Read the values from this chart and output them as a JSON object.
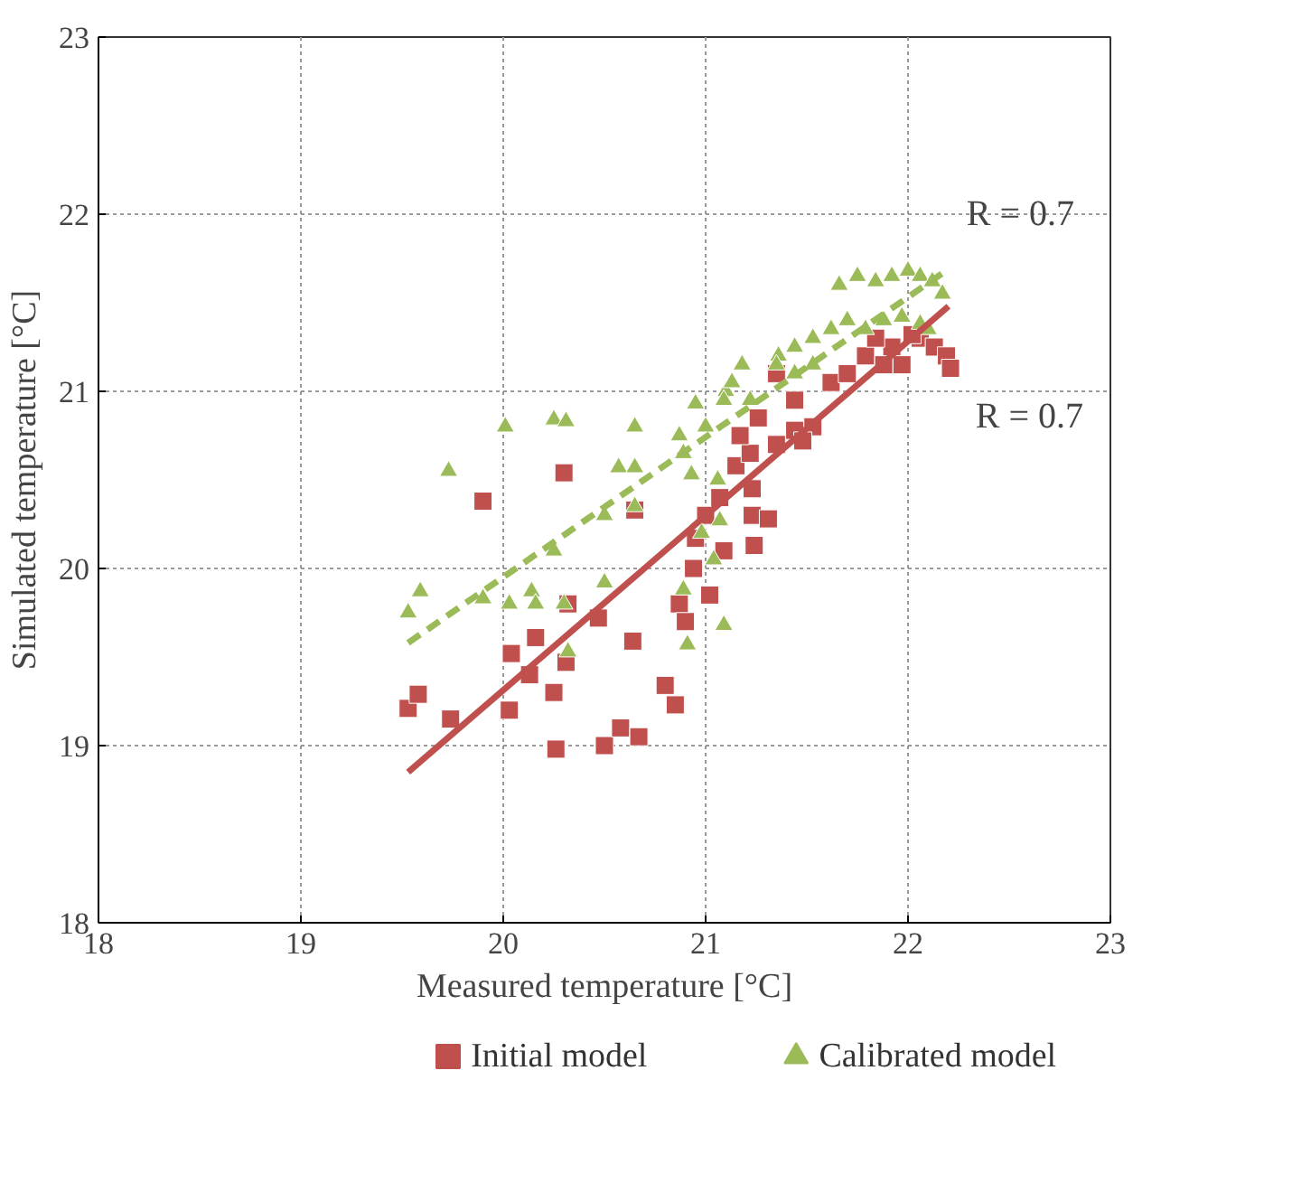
{
  "chart_data": {
    "type": "scatter",
    "xlabel": "Measured temperature [°C]",
    "ylabel": "Simulated temperature [°C]",
    "xlim": [
      18,
      23
    ],
    "ylim": [
      18,
      23
    ],
    "xticks": [
      18,
      19,
      20,
      21,
      22,
      23
    ],
    "yticks": [
      18,
      19,
      20,
      21,
      22,
      23
    ],
    "grid": true,
    "legend": "bottom",
    "series": [
      {
        "name": "Initial model",
        "marker": "square",
        "color": "#c0504d",
        "x": [
          19.53,
          19.58,
          19.74,
          19.9,
          20.03,
          20.04,
          20.13,
          20.16,
          20.25,
          20.26,
          20.3,
          20.31,
          20.32,
          20.47,
          20.5,
          20.58,
          20.64,
          20.67,
          20.65,
          20.8,
          20.85,
          20.87,
          20.9,
          20.94,
          20.95,
          21.0,
          21.02,
          21.09,
          21.07,
          21.23,
          21.24,
          21.31,
          21.23,
          21.15,
          21.35,
          21.44,
          21.53,
          21.48,
          21.62,
          21.44,
          21.35,
          21.7,
          21.79,
          21.92,
          21.97,
          21.88,
          22.06,
          22.13,
          22.19,
          22.21,
          22.02,
          21.84,
          21.26,
          21.22,
          21.17
        ],
        "values": [
          19.21,
          19.29,
          19.15,
          20.38,
          19.2,
          19.52,
          19.4,
          19.61,
          19.3,
          18.98,
          20.54,
          19.47,
          19.8,
          19.72,
          19.0,
          19.1,
          19.59,
          19.05,
          20.33,
          19.34,
          19.23,
          19.8,
          19.7,
          20.0,
          20.17,
          20.3,
          19.85,
          20.1,
          20.4,
          20.3,
          20.13,
          20.28,
          20.45,
          20.58,
          20.7,
          20.78,
          20.8,
          20.72,
          21.05,
          20.95,
          21.1,
          21.1,
          21.2,
          21.25,
          21.15,
          21.15,
          21.3,
          21.25,
          21.2,
          21.13,
          21.32,
          21.3,
          20.85,
          20.65,
          20.75
        ]
      },
      {
        "name": "Calibrated model",
        "marker": "triangle",
        "color": "#9bbb59",
        "x": [
          19.53,
          19.59,
          19.73,
          19.9,
          20.01,
          20.03,
          20.14,
          20.16,
          20.25,
          20.25,
          20.31,
          20.3,
          20.32,
          20.5,
          20.5,
          20.57,
          20.65,
          20.65,
          20.65,
          20.89,
          20.91,
          21.09,
          21.04,
          21.07,
          20.98,
          20.89,
          20.87,
          20.95,
          21.06,
          20.93,
          21.1,
          21.18,
          21.36,
          21.44,
          21.53,
          21.62,
          21.7,
          21.79,
          21.88,
          21.97,
          22.06,
          22.1,
          21.66,
          21.75,
          21.84,
          21.92,
          22.0,
          22.06,
          22.12,
          22.17,
          21.22,
          21.09,
          21.0,
          21.13,
          21.35,
          21.44,
          21.53
        ],
        "values": [
          19.75,
          19.87,
          20.55,
          19.83,
          20.8,
          19.8,
          19.87,
          19.8,
          20.1,
          20.84,
          20.83,
          19.8,
          19.53,
          20.3,
          19.92,
          20.57,
          20.57,
          20.35,
          20.8,
          20.65,
          19.57,
          19.68,
          20.05,
          20.27,
          20.2,
          19.88,
          20.75,
          20.93,
          20.5,
          20.53,
          21.0,
          21.15,
          21.2,
          21.1,
          21.3,
          21.35,
          21.4,
          21.35,
          21.4,
          21.42,
          21.38,
          21.35,
          21.6,
          21.65,
          21.62,
          21.65,
          21.68,
          21.65,
          21.62,
          21.55,
          20.95,
          20.95,
          20.8,
          21.05,
          21.15,
          21.25,
          21.15
        ]
      },
      {
        "type": "line",
        "line_style": "solid",
        "color": "#c0504d",
        "x": [
          19.53,
          22.2
        ],
        "values": [
          18.85,
          21.48
        ]
      },
      {
        "type": "line",
        "line_style": "dashed",
        "color": "#9bbb59",
        "x": [
          19.53,
          22.2
        ],
        "values": [
          19.58,
          21.69
        ]
      }
    ],
    "annotations": [
      "R  = 0.7",
      "R  = 0.7"
    ]
  }
}
